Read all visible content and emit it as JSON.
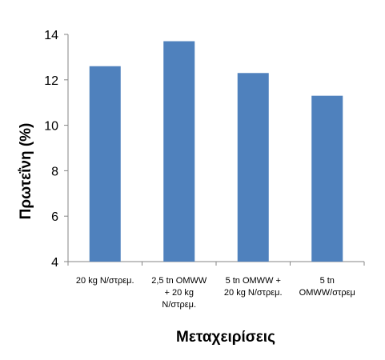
{
  "chart_data": {
    "type": "bar",
    "categories": [
      "20 kg N/στρεμ.",
      "2,5 tn OMWW + 20 kg N/στρεμ.",
      "5 tn OMWW + 20 kg N/στρεμ.",
      "5 tn OMWW/στρεμ"
    ],
    "category_lines": [
      [
        "20 kg N/στρεμ."
      ],
      [
        "2,5 tn OMWW",
        "+ 20 kg",
        "N/στρεμ."
      ],
      [
        "5 tn OMWW +",
        "20 kg N/στρεμ."
      ],
      [
        "5 tn",
        "OMWW/στρεμ"
      ]
    ],
    "values": [
      12.6,
      13.7,
      12.3,
      11.3
    ],
    "ylabel": "Πρωτεΐνη (%)",
    "xlabel": "Μεταχειρίσεις",
    "ylim": [
      4,
      14
    ],
    "yticks": [
      4,
      6,
      8,
      10,
      12,
      14
    ],
    "grid": false,
    "bar_color": "#4f81bd",
    "axis_color": "#868686"
  }
}
